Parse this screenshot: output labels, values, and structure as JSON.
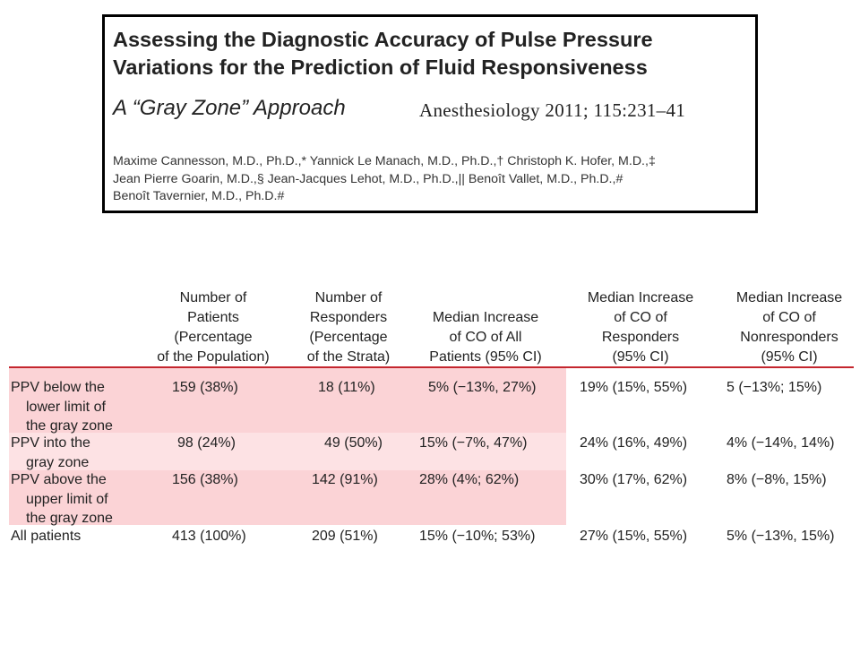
{
  "article": {
    "title_line1": "Assessing the Diagnostic Accuracy of Pulse Pressure",
    "title_line2": "Variations for the Prediction of Fluid Responsiveness",
    "subtitle": "A “Gray Zone” Approach",
    "journal_ref": "Anesthesiology 2011; 115:231–41",
    "authors_line1": "Maxime Cannesson, M.D., Ph.D.,* Yannick Le Manach, M.D., Ph.D.,† Christoph K. Hofer, M.D.,‡",
    "authors_line2": "Jean Pierre Goarin, M.D.,§ Jean-Jacques Lehot, M.D., Ph.D.,|| Benoît Vallet, M.D., Ph.D.,#",
    "authors_line3": "Benoît Tavernier, M.D., Ph.D.#"
  },
  "table": {
    "headers": [
      [
        "Number of",
        "Patients",
        "(Percentage",
        "of the Population)"
      ],
      [
        "Number of",
        "Responders",
        "(Percentage",
        "of the Strata)"
      ],
      [
        "Median Increase",
        "of CO of All",
        "Patients (95% CI)"
      ],
      [
        "Median Increase",
        "of CO of",
        "Responders",
        "(95% CI)"
      ],
      [
        "Median Increase",
        "of CO of",
        "Nonresponders",
        "(95% CI)"
      ]
    ],
    "rows": [
      {
        "label": [
          "PPV below the",
          "lower limit of",
          "the gray zone"
        ],
        "cells": [
          "159 (38%)",
          "18 (11%)",
          "5% (−13%, 27%)",
          "19% (15%, 55%)",
          "5 (−13%; 15%)"
        ]
      },
      {
        "label": [
          "PPV into the",
          "gray zone"
        ],
        "cells": [
          "98 (24%)",
          "49 (50%)",
          "15% (−7%, 47%)",
          "24% (16%, 49%)",
          "4% (−14%, 14%)"
        ]
      },
      {
        "label": [
          "PPV above the",
          "upper limit of",
          "the gray zone"
        ],
        "cells": [
          "156 (38%)",
          "142 (91%)",
          "28% (4%; 62%)",
          "30% (17%, 62%)",
          "8% (−8%, 15%)"
        ]
      },
      {
        "label": [
          "All patients"
        ],
        "cells": [
          "413 (100%)",
          "209 (51%)",
          "15% (−10%; 53%)",
          "27% (15%, 55%)",
          "5% (−13%, 15%)"
        ]
      }
    ],
    "colors": {
      "rule": "#c4262e",
      "shade": "#fbd3d6",
      "shade_light": "#fde2e4"
    }
  }
}
